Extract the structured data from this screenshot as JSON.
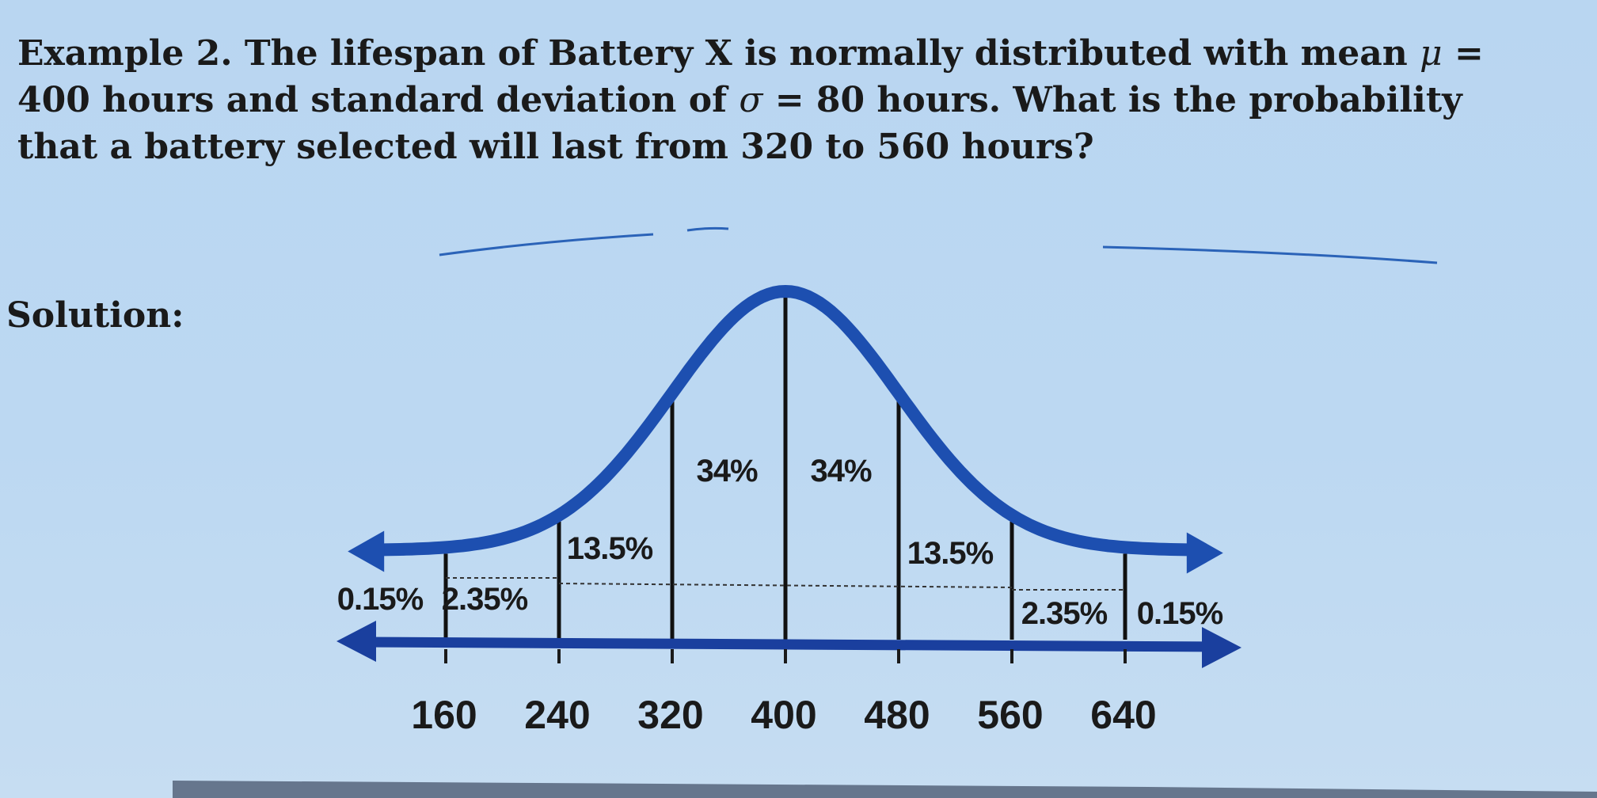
{
  "problem": {
    "line1": "Example 2. The lifespan of Battery X is normally distributed with mean ",
    "mu": "μ",
    "line1_end": " =",
    "line2a": "400 hours and standard deviation of ",
    "sigma": "σ",
    "line2b": " = 80 hours. What is the probability",
    "line3": "that a battery selected will last from 320 to 560 hours?"
  },
  "solution_label": "Solution:",
  "chart_data": {
    "type": "area",
    "distribution": "normal",
    "mean": 400,
    "sd": 80,
    "x_ticks": [
      "160",
      "240",
      "320",
      "400",
      "480",
      "560",
      "640"
    ],
    "regions": [
      {
        "from": null,
        "to": 160,
        "label": "0.15%"
      },
      {
        "from": 160,
        "to": 240,
        "label": "2.35%"
      },
      {
        "from": 240,
        "to": 320,
        "label": "13.5%"
      },
      {
        "from": 320,
        "to": 400,
        "label": "34%"
      },
      {
        "from": 400,
        "to": 480,
        "label": "34%"
      },
      {
        "from": 480,
        "to": 560,
        "label": "13.5%"
      },
      {
        "from": 560,
        "to": 640,
        "label": "2.35%"
      },
      {
        "from": 640,
        "to": null,
        "label": "0.15%"
      }
    ],
    "curve_color": "#1d4fb0",
    "axis_color": "#1a3f9e"
  }
}
